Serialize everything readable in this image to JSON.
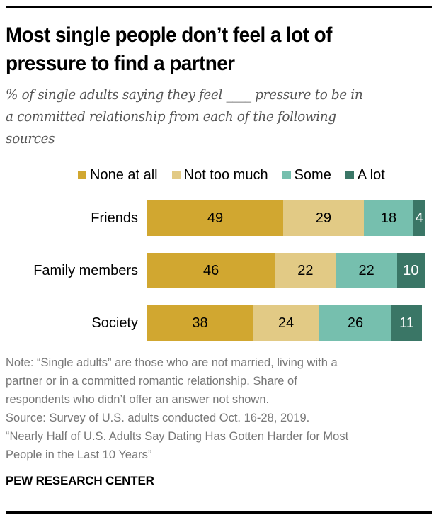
{
  "title": "Most single people don’t feel a lot of pressure to find a partner",
  "title_lines": [
    "Most single people don’t feel a lot of",
    "pressure to find a partner"
  ],
  "subtitle_lines": [
    "% of single adults saying they feel ____ pressure to be in",
    "a committed relationship from each of the following",
    "sources"
  ],
  "legend": [
    {
      "label": "None at all",
      "color": "#D1A730"
    },
    {
      "label": "Not too much",
      "color": "#E2CA85"
    },
    {
      "label": "Some",
      "color": "#76BFAE"
    },
    {
      "label": "A lot",
      "color": "#3A7666"
    }
  ],
  "rows": [
    {
      "label": "Friends",
      "values": [
        "49",
        "29",
        "18",
        "4"
      ]
    },
    {
      "label": "Family members",
      "values": [
        "46",
        "22",
        "22",
        "10"
      ]
    },
    {
      "label": "Society",
      "values": [
        "38",
        "24",
        "26",
        "11"
      ]
    }
  ],
  "notes": [
    "Note: “Single adults” are those who are not married, living with a",
    "partner or in a committed romantic relationship. Share of",
    "respondents who didn’t offer an answer not shown.",
    "Source: Survey of U.S. adults conducted Oct. 16-28, 2019.",
    "“Nearly Half of U.S. Adults Say Dating Has Gotten Harder for Most",
    "People in the Last 10 Years”"
  ],
  "brand": "PEW RESEARCH CENTER",
  "chart_data": {
    "type": "bar",
    "orientation": "horizontal",
    "stacked": true,
    "title": "Most single people don’t feel a lot of pressure to find a partner",
    "subtitle": "% of single adults saying they feel ____ pressure to be in a committed relationship from each of the following sources",
    "categories": [
      "Friends",
      "Family members",
      "Society"
    ],
    "series": [
      {
        "name": "None at all",
        "color": "#D1A730",
        "values": [
          49,
          46,
          38
        ]
      },
      {
        "name": "Not too much",
        "color": "#E2CA85",
        "values": [
          29,
          22,
          24
        ]
      },
      {
        "name": "Some",
        "color": "#76BFAE",
        "values": [
          18,
          22,
          26
        ]
      },
      {
        "name": "A lot",
        "color": "#3A7666",
        "values": [
          4,
          10,
          11
        ]
      }
    ],
    "xlabel": "",
    "ylabel": "",
    "xlim": [
      0,
      100
    ],
    "grid": false,
    "legend_position": "top",
    "data_labels": true
  }
}
